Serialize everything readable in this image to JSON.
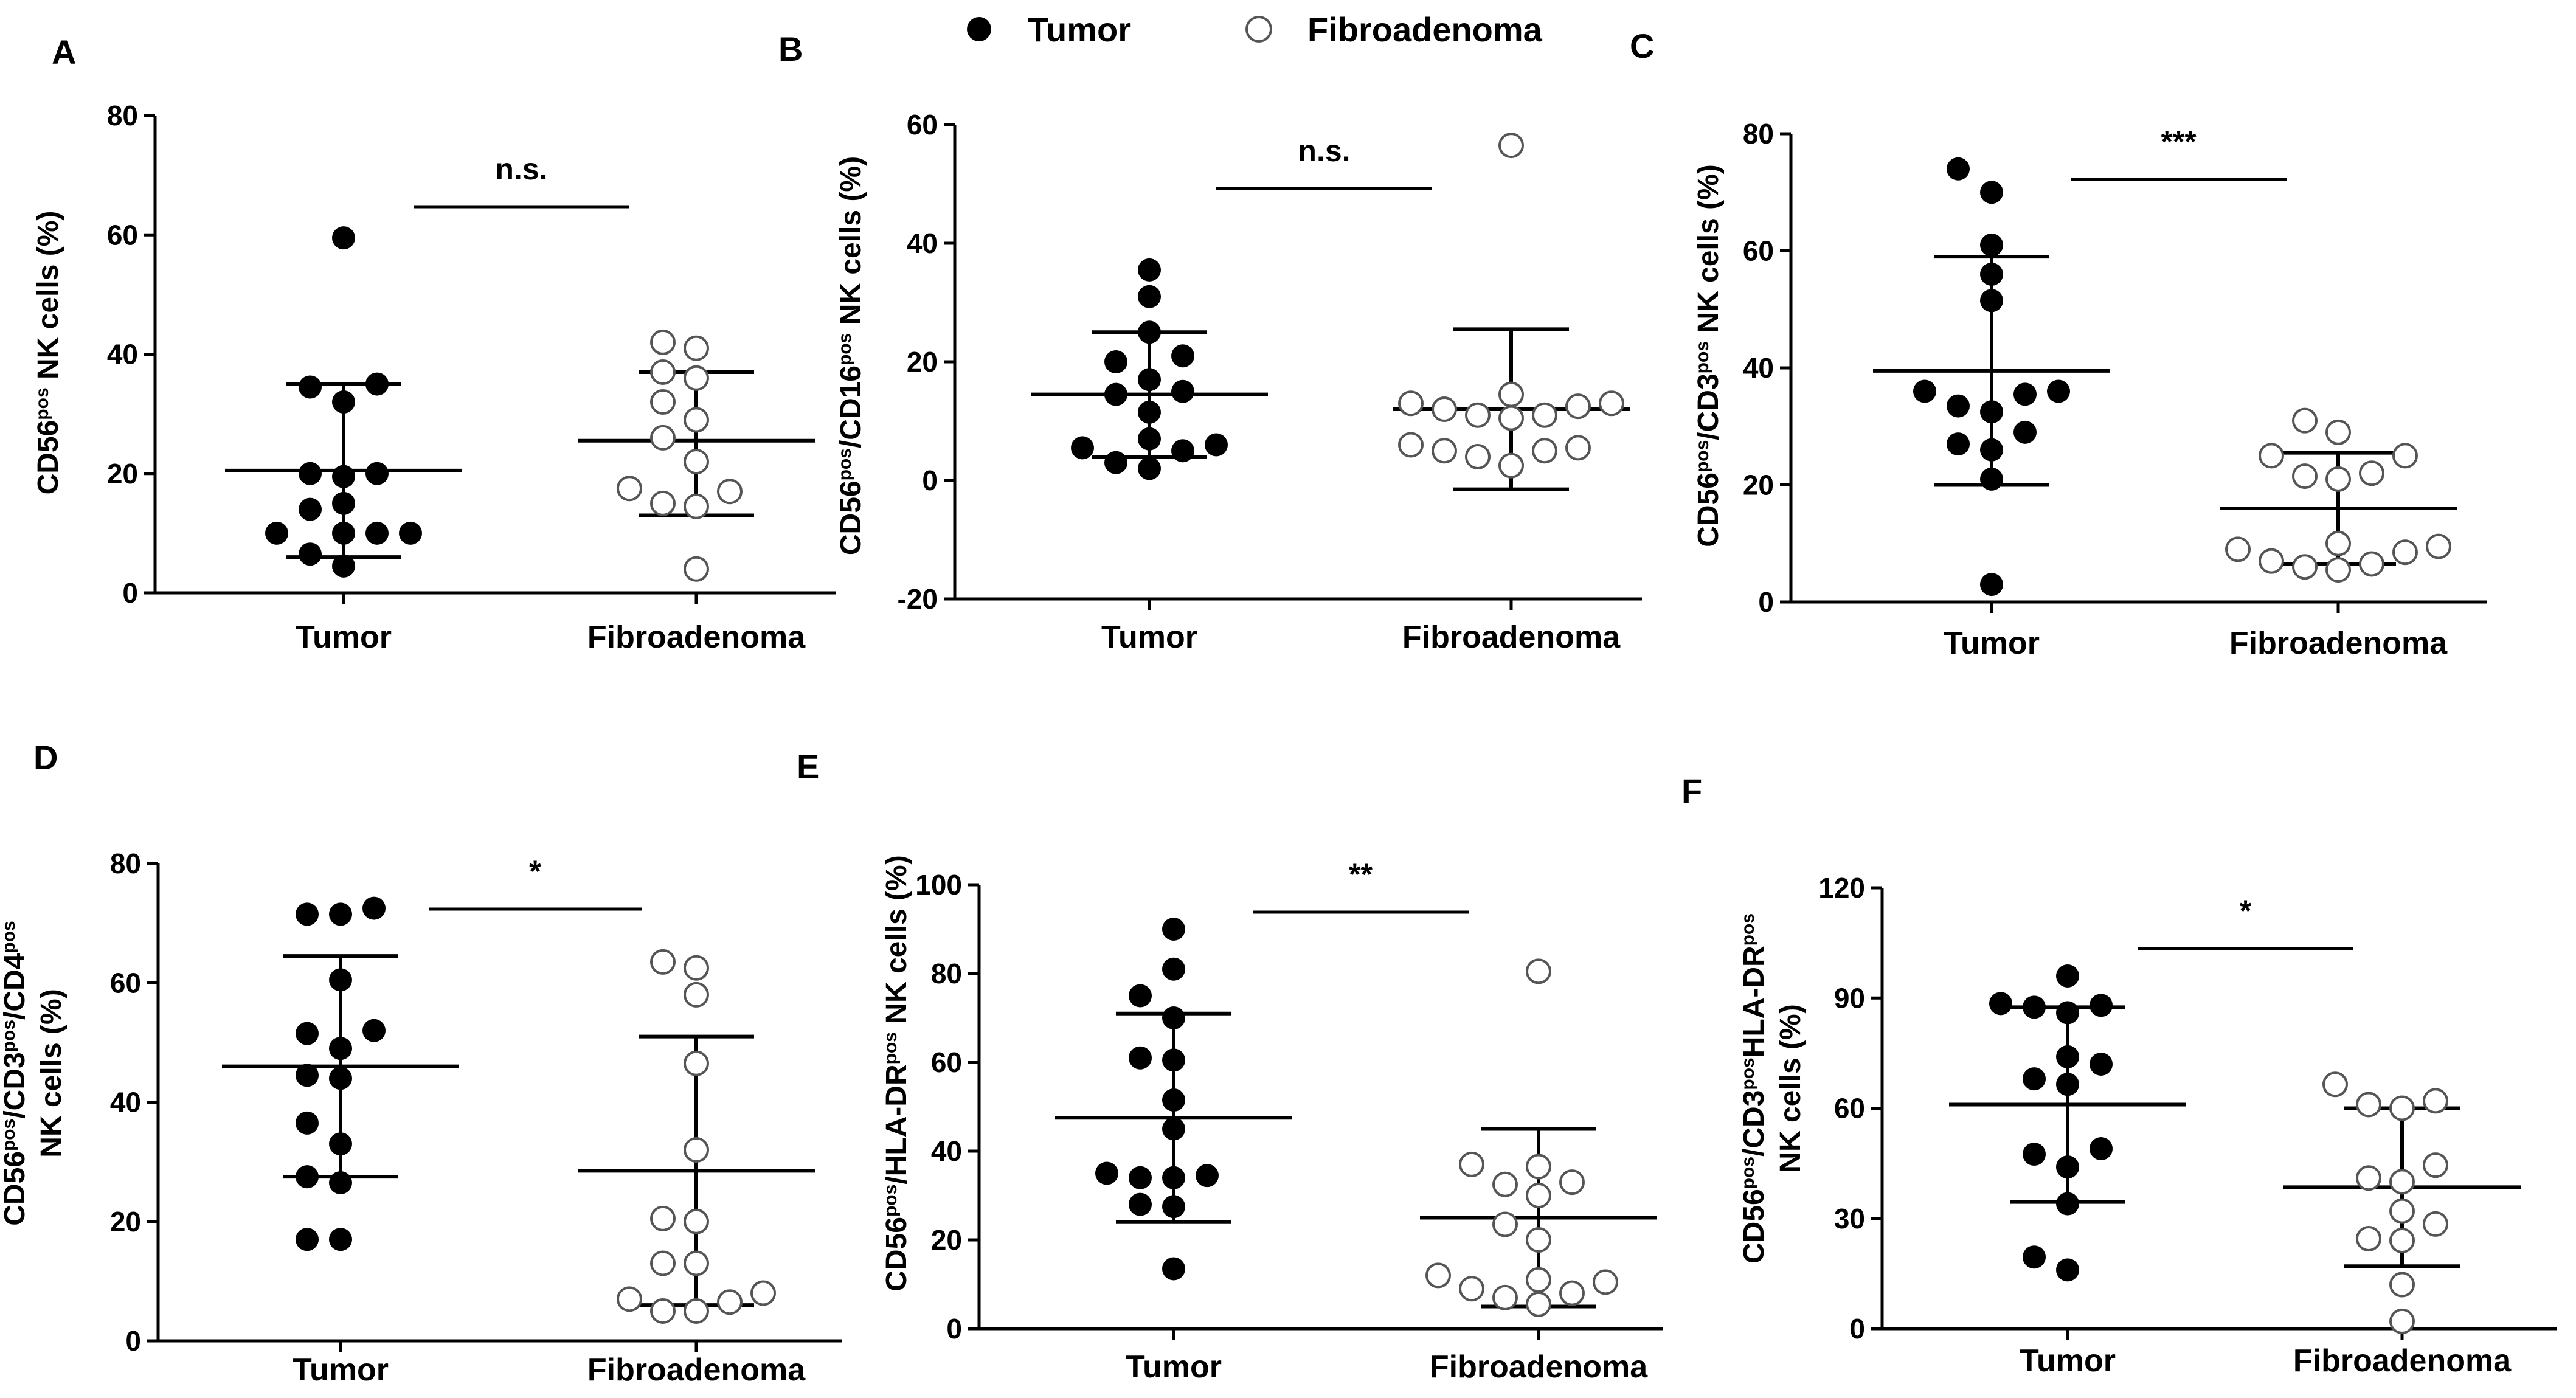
{
  "legend": [
    {
      "label": "Tumor",
      "marker": "filled"
    },
    {
      "label": "Fibroadenoma",
      "marker": "open"
    }
  ],
  "chart_data": [
    {
      "panel": "A",
      "type": "scatter",
      "categories": [
        "Tumor",
        "Fibroadenoma"
      ],
      "ylabel": [
        {
          "t": "CD56"
        },
        {
          "t": "pos",
          "sup": true
        },
        {
          "t": " NK cells (%)"
        }
      ],
      "ylim": [
        0,
        80
      ],
      "yticks": [
        0,
        20,
        40,
        60,
        80
      ],
      "significance": "n.s.",
      "series": [
        {
          "name": "Tumor",
          "values": [
            59.5,
            35,
            34.5,
            32,
            20,
            20,
            19.5,
            15,
            14,
            10,
            10,
            10,
            10,
            6.5,
            4.5
          ],
          "mean": 20.5,
          "sd_low": 6,
          "sd_high": 35
        },
        {
          "name": "Fibroadenoma",
          "values": [
            42,
            41,
            37,
            36,
            32,
            29,
            26,
            22,
            17.5,
            17,
            15,
            14.5,
            4
          ],
          "mean": 25.5,
          "sd_low": 13,
          "sd_high": 37
        }
      ]
    },
    {
      "panel": "B",
      "type": "scatter",
      "categories": [
        "Tumor",
        "Fibroadenoma"
      ],
      "ylabel": [
        {
          "t": "CD56"
        },
        {
          "t": "pos",
          "sup": true
        },
        {
          "t": "/CD16"
        },
        {
          "t": "pos",
          "sup": true
        },
        {
          "t": " NK cells (%)"
        }
      ],
      "ylim": [
        -20,
        60
      ],
      "yticks": [
        -20,
        0,
        20,
        40,
        60
      ],
      "significance": "n.s.",
      "series": [
        {
          "name": "Tumor",
          "values": [
            35.5,
            31,
            25,
            21,
            20,
            17,
            15,
            14.5,
            11.5,
            7,
            6,
            5.5,
            5,
            3,
            2
          ],
          "mean": 14.5,
          "sd_low": 4,
          "sd_high": 25
        },
        {
          "name": "Fibroadenoma",
          "values": [
            56.5,
            14.5,
            13,
            13,
            12.5,
            12,
            11,
            11,
            10.5,
            6,
            5.5,
            5,
            5,
            4,
            2.5
          ],
          "mean": 12,
          "sd_low": -1.5,
          "sd_high": 25.5
        }
      ]
    },
    {
      "panel": "C",
      "type": "scatter",
      "categories": [
        "Tumor",
        "Fibroadenoma"
      ],
      "ylabel": [
        {
          "t": "CD56"
        },
        {
          "t": "pos",
          "sup": true
        },
        {
          "t": "/CD3"
        },
        {
          "t": "pos",
          "sup": true
        },
        {
          "t": " NK cells (%)"
        }
      ],
      "ylim": [
        0,
        80
      ],
      "yticks": [
        0,
        20,
        40,
        60,
        80
      ],
      "significance": "***",
      "series": [
        {
          "name": "Tumor",
          "values": [
            74,
            70,
            61,
            56,
            51.5,
            36,
            36,
            35.5,
            33.5,
            32.5,
            29,
            27,
            26,
            21,
            3
          ],
          "mean": 39.5,
          "sd_low": 20,
          "sd_high": 59
        },
        {
          "name": "Fibroadenoma",
          "values": [
            31,
            29,
            25,
            25,
            22,
            21.5,
            21,
            10,
            9.5,
            9,
            8.5,
            7,
            6.5,
            6,
            5.5
          ],
          "mean": 16,
          "sd_low": 6.5,
          "sd_high": 25.5
        }
      ]
    },
    {
      "panel": "D",
      "type": "scatter",
      "categories": [
        "Tumor",
        "Fibroadenoma"
      ],
      "ylabel_lines": [
        [
          {
            "t": "CD56"
          },
          {
            "t": "pos",
            "sup": true
          },
          {
            "t": "/CD3"
          },
          {
            "t": "pos",
            "sup": true
          },
          {
            "t": "/CD4"
          },
          {
            "t": "pos",
            "sup": true
          }
        ],
        [
          {
            "t": "NK cells (%)"
          }
        ]
      ],
      "ylim": [
        0,
        80
      ],
      "yticks": [
        0,
        20,
        40,
        60,
        80
      ],
      "significance": "*",
      "series": [
        {
          "name": "Tumor",
          "values": [
            72.5,
            71.5,
            71.5,
            60.5,
            52,
            51.5,
            49,
            44.5,
            44,
            36.5,
            33,
            27.5,
            26.5,
            17,
            17
          ],
          "mean": 46,
          "sd_low": 27.5,
          "sd_high": 64.5
        },
        {
          "name": "Fibroadenoma",
          "values": [
            63.5,
            62.5,
            58,
            46.5,
            32,
            20.5,
            20,
            13,
            13,
            8,
            7,
            6.5,
            5,
            5
          ],
          "mean": 28.5,
          "sd_low": 6,
          "sd_high": 51
        }
      ]
    },
    {
      "panel": "E",
      "type": "scatter",
      "categories": [
        "Tumor",
        "Fibroadenoma"
      ],
      "ylabel": [
        {
          "t": "CD56"
        },
        {
          "t": "pos",
          "sup": true
        },
        {
          "t": "/HLA-DR"
        },
        {
          "t": "pos",
          "sup": true
        },
        {
          "t": " NK cells (%)"
        }
      ],
      "ylim": [
        0,
        100
      ],
      "yticks": [
        0,
        20,
        40,
        60,
        80,
        100
      ],
      "significance": "**",
      "series": [
        {
          "name": "Tumor",
          "values": [
            90,
            81,
            75,
            70,
            61,
            60.5,
            51.5,
            45,
            35,
            34.5,
            34,
            34,
            28,
            27.5,
            13.5
          ],
          "mean": 47.5,
          "sd_low": 24,
          "sd_high": 71
        },
        {
          "name": "Fibroadenoma",
          "values": [
            80.5,
            37,
            36.5,
            33,
            32.5,
            30,
            23.5,
            20,
            12,
            11,
            10.5,
            9,
            8,
            7,
            5.5
          ],
          "mean": 25,
          "sd_low": 5,
          "sd_high": 45
        }
      ]
    },
    {
      "panel": "F",
      "type": "scatter",
      "categories": [
        "Tumor",
        "Fibroadenoma"
      ],
      "ylabel_lines": [
        [
          {
            "t": "CD56"
          },
          {
            "t": "pos",
            "sup": true
          },
          {
            "t": "/CD3"
          },
          {
            "t": "pos",
            "sup": true
          },
          {
            "t": "HLA-DR"
          },
          {
            "t": "pos",
            "sup": true
          }
        ],
        [
          {
            "t": "NK cells (%)"
          }
        ]
      ],
      "ylim": [
        0,
        120
      ],
      "yticks": [
        0,
        30,
        60,
        90,
        120
      ],
      "significance": "*",
      "series": [
        {
          "name": "Tumor",
          "values": [
            96,
            88.5,
            88,
            87.5,
            86,
            74,
            72,
            68,
            66.5,
            49,
            47.5,
            44,
            34,
            19.5,
            16
          ],
          "mean": 61,
          "sd_low": 34.5,
          "sd_high": 87.5
        },
        {
          "name": "Fibroadenoma",
          "values": [
            66.5,
            62,
            61,
            60,
            44.5,
            41,
            40,
            32,
            28.5,
            24,
            24.5,
            12,
            2
          ],
          "mean": 38.5,
          "sd_low": 17,
          "sd_high": 60
        }
      ]
    }
  ]
}
